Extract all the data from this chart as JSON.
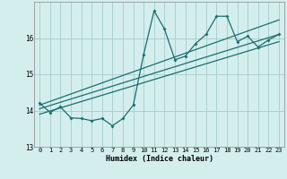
{
  "xlabel": "Humidex (Indice chaleur)",
  "ylabel": "",
  "bg_color": "#d4eeee",
  "grid_color": "#aad0d0",
  "line_color": "#1a6e6e",
  "xlim": [
    -0.5,
    23.5
  ],
  "ylim": [
    13.0,
    17.0
  ],
  "yticks": [
    13,
    14,
    15,
    16
  ],
  "xticks": [
    0,
    1,
    2,
    3,
    4,
    5,
    6,
    7,
    8,
    9,
    10,
    11,
    12,
    13,
    14,
    15,
    16,
    17,
    18,
    19,
    20,
    21,
    22,
    23
  ],
  "zigzag_x": [
    0,
    1,
    2,
    3,
    4,
    5,
    6,
    7,
    8,
    9,
    10,
    11,
    12,
    13,
    14,
    15,
    16,
    17,
    18,
    19,
    20,
    21,
    22,
    23
  ],
  "zigzag_y": [
    14.2,
    13.95,
    14.1,
    13.8,
    13.78,
    13.72,
    13.78,
    13.58,
    13.78,
    14.15,
    15.55,
    16.75,
    16.25,
    15.4,
    15.5,
    15.85,
    16.1,
    16.6,
    16.6,
    15.9,
    16.05,
    15.75,
    15.95,
    16.1
  ],
  "trend1_x": [
    0,
    23
  ],
  "trend1_y": [
    14.05,
    16.1
  ],
  "trend2_x": [
    0,
    23
  ],
  "trend2_y": [
    13.9,
    15.9
  ],
  "trend3_x": [
    0,
    23
  ],
  "trend3_y": [
    14.15,
    16.5
  ]
}
